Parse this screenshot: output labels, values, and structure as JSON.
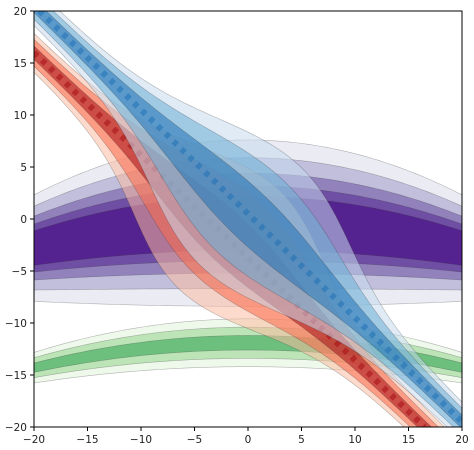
{
  "chart_data": {
    "type": "contour",
    "title": "",
    "xlabel": "",
    "ylabel": "",
    "xlim": [
      -20,
      20
    ],
    "ylim": [
      -20,
      20
    ],
    "x_ticks": [
      -20,
      -15,
      -10,
      -5,
      0,
      5,
      10,
      15,
      20
    ],
    "y_ticks": [
      20,
      15,
      10,
      5,
      0,
      -5,
      -10,
      -15,
      -20
    ],
    "x_tick_labels": [
      "−20",
      "−15",
      "−10",
      "−5",
      "0",
      "5",
      "10",
      "15",
      "20"
    ],
    "y_tick_labels": [
      "20",
      "15",
      "10",
      "5",
      "0",
      "−5",
      "−10",
      "−15",
      "−20"
    ],
    "grid": false,
    "layers": [
      {
        "kind": "horizontal-band",
        "colormap": "Greens",
        "colors": [
          "#e5f5e0",
          "#a1d99b",
          "#41ab5d"
        ],
        "alpha": 0.65,
        "center_y": -12.5,
        "curvature": 0.006,
        "levels_halfwidth": [
          2.3,
          1.5,
          0.7
        ]
      },
      {
        "kind": "horizontal-band",
        "colormap": "Purples",
        "colors": [
          "#dadaeb",
          "#9e9ac8",
          "#6a51a3",
          "#54278f",
          "#3f007d"
        ],
        "alpha": 0.55,
        "center_y": -1.0,
        "curvature": 0.006,
        "levels_halfwidth": [
          8.0,
          6.3,
          4.8,
          3.6,
          2.6
        ]
      },
      {
        "kind": "diagonal-band",
        "colormap": "Reds",
        "colors": [
          "#fcbba1",
          "#fb6a4a",
          "#a50f15"
        ],
        "alpha": 0.55,
        "line": {
          "x1": -20,
          "y1": 16.0,
          "x2": 16.5,
          "y2": -20
        },
        "bulge": 7.5,
        "levels_halfwidth": [
          1.3,
          0.9,
          0.45
        ]
      },
      {
        "kind": "diagonal-band",
        "colormap": "Blues",
        "colors": [
          "#c6dbef",
          "#6baed6",
          "#2171b5"
        ],
        "alpha": 0.55,
        "line": {
          "x1": -19.5,
          "y1": 20,
          "x2": 20,
          "y2": -19.5
        },
        "bulge": 7.5,
        "levels_halfwidth": [
          1.3,
          0.9,
          0.45
        ]
      }
    ]
  }
}
